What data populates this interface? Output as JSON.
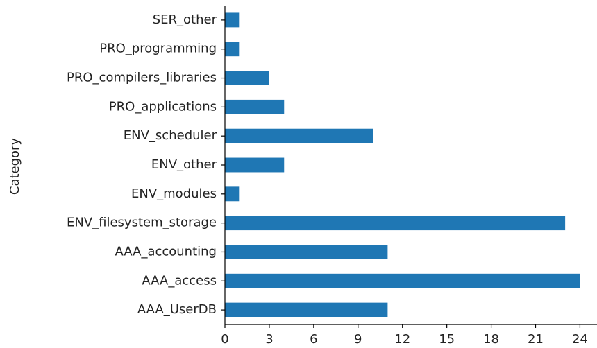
{
  "chart_data": {
    "type": "barh",
    "ylabel": "Category",
    "categories": [
      "AAA_UserDB",
      "AAA_access",
      "AAA_accounting",
      "ENV_filesystem_storage",
      "ENV_modules",
      "ENV_other",
      "ENV_scheduler",
      "PRO_applications",
      "PRO_compilers_libraries",
      "PRO_programming",
      "SER_other"
    ],
    "values": [
      11,
      24,
      11,
      23,
      1,
      4,
      10,
      4,
      3,
      1,
      1
    ],
    "color": "#1f77b4",
    "xlim": [
      0,
      25.2
    ],
    "xticks": [
      0,
      3,
      6,
      9,
      12,
      15,
      18,
      21,
      24
    ],
    "grid": false
  }
}
